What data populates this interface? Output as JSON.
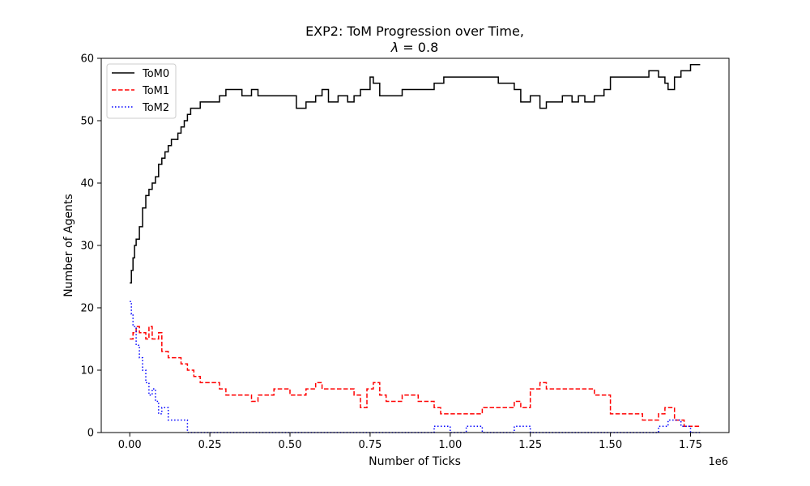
{
  "chart_data": {
    "type": "line",
    "title_line1": "EXP2: ToM Progression over Time,",
    "title_line2_symbol": "λ",
    "title_line2_rest": " = 0.8",
    "xlabel": "Number of Ticks",
    "ylabel": "Number of Agents",
    "x_offset_label": "1e6",
    "x_scale": 1000000,
    "xlim": [
      -0.089,
      1.87
    ],
    "ylim": [
      0,
      60
    ],
    "x_ticks": [
      0.0,
      0.25,
      0.5,
      0.75,
      1.0,
      1.25,
      1.5,
      1.75
    ],
    "x_tick_labels": [
      "0.00",
      "0.25",
      "0.50",
      "0.75",
      "1.00",
      "1.25",
      "1.50",
      "1.75"
    ],
    "y_ticks": [
      0,
      10,
      20,
      30,
      40,
      50,
      60
    ],
    "y_tick_labels": [
      "0",
      "10",
      "20",
      "30",
      "40",
      "50",
      "60"
    ],
    "legend_position": "top-left",
    "series": [
      {
        "name": "ToM0",
        "color": "#000000",
        "style": "solid",
        "x": [
          0.0,
          0.005,
          0.01,
          0.015,
          0.02,
          0.03,
          0.04,
          0.05,
          0.06,
          0.07,
          0.08,
          0.09,
          0.1,
          0.11,
          0.12,
          0.13,
          0.14,
          0.15,
          0.16,
          0.17,
          0.18,
          0.19,
          0.2,
          0.22,
          0.25,
          0.28,
          0.3,
          0.32,
          0.35,
          0.38,
          0.4,
          0.45,
          0.5,
          0.52,
          0.55,
          0.58,
          0.6,
          0.62,
          0.65,
          0.68,
          0.7,
          0.72,
          0.75,
          0.76,
          0.78,
          0.8,
          0.85,
          0.9,
          0.95,
          0.98,
          1.0,
          1.05,
          1.1,
          1.15,
          1.2,
          1.22,
          1.25,
          1.28,
          1.3,
          1.33,
          1.35,
          1.38,
          1.4,
          1.42,
          1.45,
          1.48,
          1.5,
          1.55,
          1.6,
          1.62,
          1.65,
          1.67,
          1.68,
          1.7,
          1.72,
          1.75,
          1.78
        ],
        "y": [
          24,
          26,
          28,
          30,
          31,
          33,
          36,
          38,
          39,
          40,
          41,
          43,
          44,
          45,
          46,
          47,
          47,
          48,
          49,
          50,
          51,
          52,
          52,
          53,
          53,
          54,
          55,
          55,
          54,
          55,
          54,
          54,
          54,
          52,
          53,
          54,
          55,
          53,
          54,
          53,
          54,
          55,
          57,
          56,
          54,
          54,
          55,
          55,
          56,
          57,
          57,
          57,
          57,
          56,
          55,
          53,
          54,
          52,
          53,
          53,
          54,
          53,
          54,
          53,
          54,
          55,
          57,
          57,
          57,
          58,
          57,
          56,
          55,
          57,
          58,
          59,
          59
        ]
      },
      {
        "name": "ToM1",
        "color": "#ff0000",
        "style": "dashed",
        "x": [
          0.0,
          0.01,
          0.02,
          0.03,
          0.04,
          0.05,
          0.06,
          0.07,
          0.08,
          0.09,
          0.1,
          0.12,
          0.14,
          0.16,
          0.18,
          0.2,
          0.22,
          0.25,
          0.28,
          0.3,
          0.35,
          0.38,
          0.4,
          0.45,
          0.5,
          0.55,
          0.58,
          0.6,
          0.62,
          0.65,
          0.7,
          0.72,
          0.74,
          0.76,
          0.78,
          0.8,
          0.85,
          0.9,
          0.95,
          0.97,
          1.0,
          1.05,
          1.1,
          1.15,
          1.2,
          1.22,
          1.25,
          1.28,
          1.3,
          1.35,
          1.4,
          1.45,
          1.48,
          1.5,
          1.55,
          1.6,
          1.65,
          1.67,
          1.7,
          1.73,
          1.78
        ],
        "y": [
          15,
          16,
          17,
          16,
          16,
          15,
          17,
          15,
          15,
          16,
          13,
          12,
          12,
          11,
          10,
          9,
          8,
          8,
          7,
          6,
          6,
          5,
          6,
          7,
          6,
          7,
          8,
          7,
          7,
          7,
          6,
          4,
          7,
          8,
          6,
          5,
          6,
          5,
          4,
          3,
          3,
          3,
          4,
          4,
          5,
          4,
          7,
          8,
          7,
          7,
          7,
          6,
          6,
          3,
          3,
          2,
          3,
          4,
          2,
          1,
          1
        ]
      },
      {
        "name": "ToM2",
        "color": "#0000ff",
        "style": "dotted",
        "x": [
          0.0,
          0.005,
          0.01,
          0.02,
          0.03,
          0.04,
          0.05,
          0.06,
          0.07,
          0.08,
          0.09,
          0.1,
          0.12,
          0.15,
          0.18,
          0.2,
          0.3,
          0.4,
          0.5,
          0.6,
          0.7,
          0.8,
          0.9,
          0.95,
          1.0,
          1.05,
          1.1,
          1.15,
          1.2,
          1.25,
          1.3,
          1.4,
          1.5,
          1.6,
          1.65,
          1.68,
          1.7,
          1.72,
          1.75,
          1.78
        ],
        "y": [
          21,
          19,
          17,
          14,
          12,
          10,
          8,
          6,
          7,
          5,
          3,
          4,
          2,
          2,
          0,
          0,
          0,
          0,
          0,
          0,
          0,
          0,
          0,
          1,
          0,
          1,
          0,
          0,
          1,
          0,
          0,
          0,
          0,
          0,
          1,
          2,
          2,
          1,
          0,
          0
        ]
      }
    ]
  }
}
